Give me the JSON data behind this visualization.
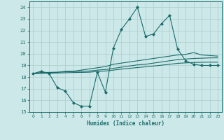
{
  "xlabel": "Humidex (Indice chaleur)",
  "bg_color": "#cce8e8",
  "grid_color": "#aacccc",
  "line_color": "#1a6b6b",
  "xlim": [
    -0.5,
    23.5
  ],
  "ylim": [
    15,
    24.5
  ],
  "xticks": [
    0,
    1,
    2,
    3,
    4,
    5,
    6,
    7,
    8,
    9,
    10,
    11,
    12,
    13,
    14,
    15,
    16,
    17,
    18,
    19,
    20,
    21,
    22,
    23
  ],
  "yticks": [
    15,
    16,
    17,
    18,
    19,
    20,
    21,
    22,
    23,
    24
  ],
  "series": [
    {
      "x": [
        0,
        1,
        2,
        3,
        4,
        5,
        6,
        7,
        8,
        9,
        10,
        11,
        12,
        13,
        14,
        15,
        16,
        17,
        18,
        19,
        20,
        21,
        22,
        23
      ],
      "y": [
        18.3,
        18.5,
        18.3,
        17.1,
        16.8,
        15.8,
        15.5,
        15.5,
        18.4,
        16.7,
        20.5,
        22.1,
        23.0,
        24.0,
        21.5,
        21.7,
        22.6,
        23.3,
        20.4,
        19.4,
        19.1,
        19.0,
        19.0,
        19.0
      ],
      "marker": true
    },
    {
      "x": [
        0,
        1,
        2,
        3,
        4,
        5,
        6,
        7,
        8,
        9,
        10,
        11,
        12,
        13,
        14,
        15,
        16,
        17,
        18,
        19,
        20,
        21,
        22,
        23
      ],
      "y": [
        18.3,
        18.4,
        18.4,
        18.4,
        18.5,
        18.5,
        18.6,
        18.7,
        18.8,
        18.9,
        19.1,
        19.2,
        19.3,
        19.4,
        19.5,
        19.6,
        19.7,
        19.8,
        19.9,
        19.95,
        20.1,
        19.9,
        19.85,
        19.8
      ],
      "marker": false
    },
    {
      "x": [
        0,
        1,
        2,
        3,
        4,
        5,
        6,
        7,
        8,
        9,
        10,
        11,
        12,
        13,
        14,
        15,
        16,
        17,
        18,
        19,
        20,
        21,
        22,
        23
      ],
      "y": [
        18.3,
        18.35,
        18.4,
        18.42,
        18.45,
        18.47,
        18.5,
        18.52,
        18.6,
        18.65,
        18.75,
        18.85,
        18.95,
        19.05,
        19.1,
        19.2,
        19.3,
        19.4,
        19.5,
        19.55,
        19.6,
        19.62,
        19.65,
        19.65
      ],
      "marker": false
    },
    {
      "x": [
        0,
        1,
        2,
        3,
        4,
        5,
        6,
        7,
        8,
        9,
        10,
        11,
        12,
        13,
        14,
        15,
        16,
        17,
        18,
        19,
        20,
        21,
        22,
        23
      ],
      "y": [
        18.3,
        18.32,
        18.33,
        18.35,
        18.37,
        18.39,
        18.4,
        18.42,
        18.48,
        18.52,
        18.6,
        18.68,
        18.75,
        18.82,
        18.88,
        18.95,
        19.02,
        19.1,
        19.18,
        19.22,
        19.25,
        19.27,
        19.28,
        19.28
      ],
      "marker": false
    }
  ]
}
